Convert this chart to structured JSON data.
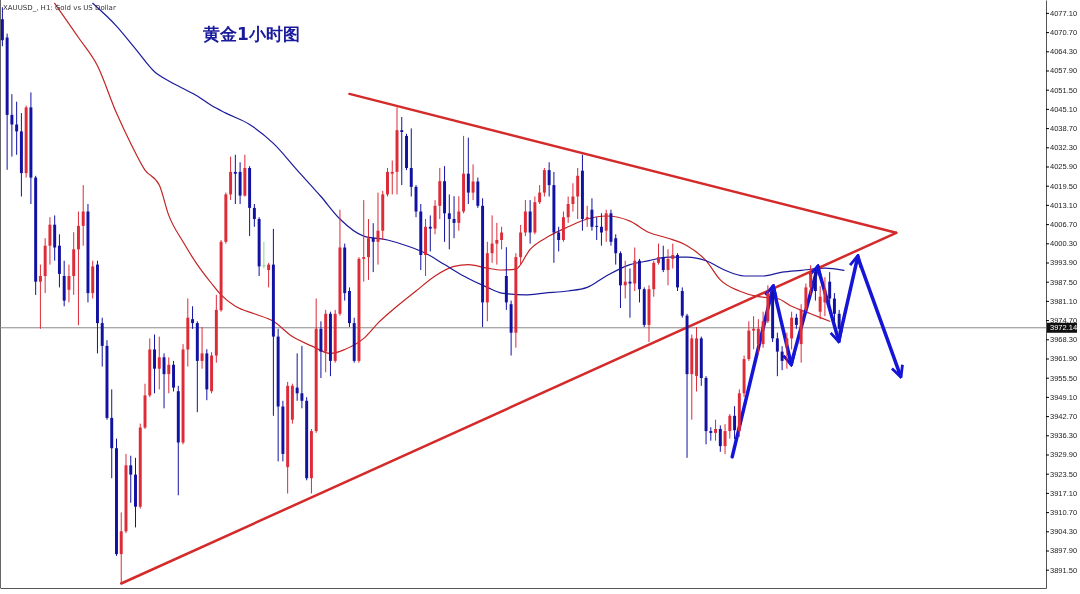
{
  "chart_data": {
    "type": "candlestick",
    "title": "黄金1小时图",
    "annotations": [
      "XAUUSD_, H1:  Gold vs US Dollar"
    ],
    "categories": [
      null,
      null,
      null,
      null,
      null,
      null,
      null,
      null,
      null,
      null,
      null,
      null,
      null,
      null,
      null,
      null,
      null,
      null,
      null,
      null,
      null,
      null,
      null,
      null,
      null,
      null,
      null,
      null,
      null,
      null,
      null,
      null,
      null,
      null,
      null,
      null,
      null,
      null,
      null,
      null,
      null,
      null,
      null,
      null,
      null,
      null,
      null,
      null,
      null,
      null,
      null,
      null,
      null,
      null,
      null,
      null,
      null,
      null,
      null,
      null,
      null,
      null,
      null,
      null,
      null,
      null,
      null,
      null,
      null,
      null,
      null,
      null,
      null,
      null,
      null,
      null,
      null,
      null,
      null,
      null,
      null,
      null,
      null,
      null,
      null,
      null,
      null,
      null,
      null,
      null,
      null,
      null,
      null,
      null,
      null,
      null,
      null,
      null,
      null,
      null,
      null,
      null,
      null,
      null,
      null,
      null,
      null,
      null,
      null,
      null,
      null,
      null,
      null,
      null,
      null,
      null,
      null,
      null,
      null,
      null,
      null,
      null,
      null,
      null,
      null,
      null,
      null,
      null,
      null,
      null,
      null,
      null,
      null,
      null,
      null,
      null,
      null,
      null,
      null,
      null,
      null,
      null,
      null,
      null,
      null,
      null,
      null,
      null,
      null,
      null,
      null,
      null,
      null,
      null,
      null,
      null,
      null,
      null,
      null,
      null,
      null,
      null,
      null,
      null,
      null,
      null,
      null,
      null,
      null,
      null,
      null,
      null,
      null,
      null,
      null,
      null,
      null,
      null,
      null,
      null,
      null,
      null,
      null,
      null,
      null,
      null,
      null,
      null,
      null,
      null,
      null,
      null,
      null,
      null,
      null,
      null,
      null,
      null,
      null,
      null,
      null,
      null,
      null,
      null,
      null,
      null,
      null,
      null,
      null,
      null,
      null,
      null,
      null,
      null,
      null,
      null,
      null,
      null,
      null,
      null
    ],
    "ohlc": [
      [
        4075,
        4079,
        4066,
        4068
      ],
      [
        4068.9,
        4070.2,
        4024.8,
        4043.1
      ],
      [
        4043.1,
        4050,
        4029.2,
        4039.9
      ],
      [
        4039.9,
        4047.5,
        4029.8,
        4037.6
      ],
      [
        4037.6,
        4043.7,
        4015.9,
        4023.7
      ],
      [
        4023.7,
        4046.2,
        4022.2,
        4045.6
      ],
      [
        4045.6,
        4050.6,
        4013.4,
        4022.2
      ],
      [
        4022.2,
        4022.8,
        3983.1,
        3987.5
      ],
      [
        3987.5,
        3993.2,
        3971.8,
        3989.4
      ],
      [
        3989.4,
        4002,
        3983.7,
        3999.5
      ],
      [
        3999.5,
        4009,
        3993.2,
        4006.5
      ],
      [
        4006.5,
        4009.6,
        3994.5,
        3998.9
      ],
      [
        3999.5,
        4003.3,
        3985.6,
        3990.1
      ],
      [
        3989.4,
        3994.5,
        3979.3,
        3981.2
      ],
      [
        3984.8,
        3993.2,
        3980.6,
        3989.4
      ],
      [
        3989.4,
        4004,
        3983.1,
        3998.3
      ],
      [
        3998.3,
        4010.9,
        3973,
        4006.1
      ],
      [
        4006.1,
        4019.7,
        3999.5,
        4010.9
      ],
      [
        4010.9,
        4013.4,
        3980.6,
        3983.7
      ],
      [
        3983.7,
        3994.5,
        3981.9,
        3992.6
      ],
      [
        3993.2,
        3994.5,
        3963.6,
        3973.7
      ],
      [
        3973.7,
        3975.5,
        3959.2,
        3966.1
      ],
      [
        3966.1,
        3968,
        3941.5,
        3942.1
      ],
      [
        3942.1,
        3951.6,
        3922,
        3932
      ],
      [
        3932,
        3935.2,
        3896.1,
        3896.7
      ],
      [
        3896.7,
        3910.6,
        3887,
        3904.3
      ],
      [
        3904.3,
        3930.1,
        3903.7,
        3926.3
      ],
      [
        3926.3,
        3929.5,
        3913.8,
        3923.2
      ],
      [
        3923.2,
        3928.8,
        3905.6,
        3912.5
      ],
      [
        3912.5,
        3940.2,
        3911.9,
        3938.9
      ],
      [
        3938.9,
        3953.5,
        3938.4,
        3949.6
      ],
      [
        3949.6,
        3968.6,
        3949,
        3964.9
      ],
      [
        3964.9,
        3969.9,
        3950.3,
        3958.5
      ],
      [
        3958.5,
        3969.2,
        3951.6,
        3962.3
      ],
      [
        3962.3,
        3963.6,
        3945.3,
        3956.7
      ],
      [
        3956.7,
        3962.3,
        3950.3,
        3959.8
      ],
      [
        3959.8,
        3961.1,
        3950.9,
        3952.2
      ],
      [
        3951,
        3952.8,
        3916.3,
        3933.9
      ],
      [
        3933.9,
        3966.7,
        3933.3,
        3964.9
      ],
      [
        3964.9,
        3981.9,
        3959.2,
        3975.5
      ],
      [
        3975,
        3979.3,
        3971.8,
        3973.7
      ],
      [
        3973.7,
        3974.3,
        3944,
        3961.1
      ],
      [
        3961.1,
        3972.4,
        3958.5,
        3963.6
      ],
      [
        3963.6,
        3965,
        3948,
        3951.6
      ],
      [
        3951,
        3964,
        3950.3,
        3962.9
      ],
      [
        3962.9,
        3983.1,
        3960.5,
        3978.1
      ],
      [
        3978,
        4001.4,
        3977.5,
        4000.8
      ],
      [
        4000.8,
        4017.2,
        4000.2,
        4016.6
      ],
      [
        4016.6,
        4029.2,
        4014.7,
        4024.1
      ],
      [
        4024.1,
        4029.8,
        4013.4,
        4023.5
      ],
      [
        4024.1,
        4027.3,
        4013.4,
        4016.2
      ],
      [
        4016.2,
        4029.8,
        4015.9,
        4025.4
      ],
      [
        4025.4,
        4026,
        4002.7,
        4012.1
      ],
      [
        4012.1,
        4013.4,
        4005.8,
        4008.4
      ],
      [
        4008.4,
        4009,
        3989.4,
        3992.6
      ],
      [
        3992.6,
        4000.8,
        3992,
        3993
      ],
      [
        3991.4,
        3993.8,
        3985.6,
        3993.2
      ],
      [
        3993.2,
        4005.1,
        3942.8,
        3969.2
      ],
      [
        3969.2,
        3971.8,
        3927.6,
        3945.9
      ],
      [
        3945.9,
        3947.8,
        3927.6,
        3930.1
      ],
      [
        3925.7,
        3954.1,
        3916.9,
        3952.8
      ],
      [
        3941.5,
        3953.5,
        3940.2,
        3952.8
      ],
      [
        3952.2,
        3963.6,
        3947.8,
        3950.3
      ],
      [
        3950.3,
        3966.1,
        3945.3,
        3947.8
      ],
      [
        3947.8,
        3949,
        3921.3,
        3922
      ],
      [
        3922,
        3938.4,
        3916.9,
        3937.7
      ],
      [
        3937.7,
        3981.9,
        3937.1,
        3971.8
      ],
      [
        3971.8,
        3974.3,
        3955.4,
        3964.2
      ],
      [
        3964.2,
        3978.1,
        3957.3,
        3976.8
      ],
      [
        3976.8,
        3977.5,
        3956,
        3961.1
      ],
      [
        3961.1,
        3978.1,
        3960.5,
        3976.8
      ],
      [
        3976.8,
        4011.5,
        3976.2,
        3998.9
      ],
      [
        3998.9,
        4000.2,
        3981.2,
        3983.7
      ],
      [
        3984.4,
        3985.6,
        3972.4,
        3973.7
      ],
      [
        3973.7,
        3975.5,
        3960.5,
        3961.1
      ],
      [
        3961.1,
        3995.7,
        3960.5,
        3995.1
      ],
      [
        3995.1,
        4014.7,
        3987.5,
        3995.7
      ],
      [
        3995.7,
        4008.4,
        3988.1,
        4002
      ],
      [
        4002,
        4007,
        3990.7,
        4000.8
      ],
      [
        4000.8,
        4017.2,
        3993.2,
        4004.5
      ],
      [
        4004.5,
        4017.8,
        4001.4,
        4016.6
      ],
      [
        4016.6,
        4025.4,
        4015.9,
        4024.1
      ],
      [
        4023.5,
        4027.9,
        4016.6,
        4024.1
      ],
      [
        4024.1,
        4045.6,
        4016.6,
        4038
      ],
      [
        4038,
        4042.4,
        4019.7,
        4037.4
      ],
      [
        4036.1,
        4036.8,
        4024.7,
        4025.4
      ],
      [
        4025.4,
        4038.6,
        4015.9,
        4019.1
      ],
      [
        4019.1,
        4019.7,
        4009,
        4010.9
      ],
      [
        4010.9,
        4013.4,
        3991.4,
        3996.4
      ],
      [
        3996.4,
        4008.4,
        3989.4,
        4005.8
      ],
      [
        4005.8,
        4009.6,
        3997.6,
        4005.2
      ],
      [
        4005.2,
        4014.7,
        4003.3,
        4012.8
      ],
      [
        4012.8,
        4025.4,
        4008.4,
        4021
      ],
      [
        4021,
        4026,
        4000.8,
        4010.3
      ],
      [
        4010.3,
        4016.6,
        3998.3,
        4008.4
      ],
      [
        4008.4,
        4016,
        4002,
        4007.1
      ],
      [
        4007.1,
        4016,
        4004.5,
        4010.9
      ],
      [
        4010.9,
        4036.1,
        4010.3,
        4023.5
      ],
      [
        4023.5,
        4035.5,
        4013.4,
        4017.2
      ],
      [
        4017.2,
        4026.6,
        4014.7,
        4020.9
      ],
      [
        4020.9,
        4022.2,
        4012.1,
        4012.8
      ],
      [
        4012.8,
        4015.3,
        3972.4,
        3980.6
      ],
      [
        3980.6,
        4000.8,
        3974.3,
        3997
      ],
      [
        3997,
        4009.6,
        3993.8,
        4000.2
      ],
      [
        4000.2,
        4007.1,
        3993.2,
        4001.4
      ],
      [
        4001.4,
        4005.8,
        3998.3,
        4003.9
      ],
      [
        3989.4,
        3999,
        3978.1,
        3980.6
      ],
      [
        3980,
        3981.2,
        3962.9,
        3970.5
      ],
      [
        3970.5,
        3997,
        3965.5,
        3995.7
      ],
      [
        3995.7,
        4006.4,
        3993.2,
        4003.9
      ],
      [
        4003.9,
        4014.7,
        4002.7,
        4010.9
      ],
      [
        4010.9,
        4014.7,
        4000.2,
        4003.9
      ],
      [
        4003.9,
        4015.9,
        4003.3,
        4014
      ],
      [
        4014,
        4019.7,
        4013.4,
        4017.2
      ],
      [
        4017.2,
        4025.4,
        4015.9,
        4024.7
      ],
      [
        4024.7,
        4027.3,
        4015.9,
        4019.7
      ],
      [
        4019.7,
        4024.1,
        3993.8,
        4003.9
      ],
      [
        4003.9,
        4005.8,
        3997.6,
        4001.4
      ],
      [
        4001.4,
        4010.9,
        4000.8,
        4009
      ],
      [
        4009,
        4015.9,
        4007.1,
        4013.4
      ],
      [
        4013.4,
        4020.3,
        4010.9,
        4015.9
      ],
      [
        4015.9,
        4025.4,
        4008.4,
        4022.8
      ],
      [
        4024.5,
        4029.8,
        4004.5,
        4008.4
      ],
      [
        4008.4,
        4012.8,
        4005.8,
        4009
      ],
      [
        4011.5,
        4015.3,
        4004.5,
        4005.8
      ],
      [
        4006.1,
        4009,
        4001.4,
        4005.8
      ],
      [
        4005.8,
        4010.3,
        3999.5,
        4003.9
      ],
      [
        4004.5,
        4011.5,
        4000.8,
        4010.3
      ],
      [
        4010.3,
        4011.5,
        3999.5,
        4000.8
      ],
      [
        4002,
        4003.3,
        3993.2,
        3997
      ],
      [
        3997,
        3997.6,
        3978.7,
        3986.3
      ],
      [
        3986.3,
        3994.5,
        3981.9,
        3987.5
      ],
      [
        3987.5,
        3991.9,
        3975.5,
        3986.9
      ],
      [
        3986.9,
        3998.9,
        3984.4,
        3994.5
      ],
      [
        3994.5,
        3995.1,
        3980.6,
        3985
      ],
      [
        3985,
        3985.6,
        3972.4,
        3973.1
      ],
      [
        3973.1,
        3986.3,
        3967.4,
        3985
      ],
      [
        3985,
        3994.5,
        3982.5,
        3993.8
      ],
      [
        3993.8,
        4000.2,
        3993.2,
        3995.7
      ],
      [
        3995.7,
        3999.5,
        3990.7,
        3991.4
      ],
      [
        3991.4,
        3998.3,
        3986.3,
        3995.1
      ],
      [
        3995.1,
        4000.2,
        3991.9,
        3996.4
      ],
      [
        3996.4,
        3997,
        3984.4,
        3985.6
      ],
      [
        3984.4,
        3985.6,
        3975.5,
        3976.2
      ],
      [
        3976.2,
        3976.8,
        3928.8,
        3956.7
      ],
      [
        3956.7,
        3969.9,
        3941.5,
        3968.6
      ],
      [
        3956.1,
        3972.4,
        3950.9,
        3968.6
      ],
      [
        3968.6,
        3969.2,
        3952.8,
        3955.4
      ],
      [
        3955.4,
        3956,
        3933.3,
        3937.7
      ],
      [
        3937.7,
        3939,
        3934.5,
        3937.1
      ],
      [
        3937.1,
        3941.5,
        3934.5,
        3938.4
      ],
      [
        3938.4,
        3939.6,
        3930.8,
        3932.7
      ],
      [
        3932.7,
        3940,
        3930,
        3937.7
      ],
      [
        3937.7,
        3943.4,
        3935.2,
        3942.8
      ],
      [
        3942.8,
        3946,
        3935,
        3938
      ],
      [
        3937.7,
        3951.6,
        3935.8,
        3950.3
      ],
      [
        3950.3,
        3962.9,
        3949,
        3961.7
      ],
      [
        3961.7,
        3974.3,
        3961.1,
        3971.2
      ],
      [
        3971.2,
        3976,
        3965,
        3971.8
      ],
      [
        3966.7,
        3975,
        3963.6,
        3971.8
      ],
      [
        3966.7,
        3977.5,
        3965.5,
        3974.3
      ],
      [
        3974.3,
        3986.3,
        3973.7,
        3983.7
      ],
      [
        3983.7,
        3984.4,
        3967.4,
        3968.6
      ],
      [
        3968.6,
        3970.5,
        3956,
        3964.2
      ],
      [
        3964.2,
        3966,
        3958,
        3961.1
      ],
      [
        3966.1,
        3970.5,
        3958.5,
        3968.6
      ],
      [
        3968.6,
        3977.5,
        3964.9,
        3975.5
      ],
      [
        3975.5,
        3976.8,
        3971.8,
        3973.1
      ],
      [
        3966.7,
        3980,
        3960.5,
        3978.1
      ],
      [
        3978.1,
        3986.9,
        3977.5,
        3985.6
      ],
      [
        3985.6,
        3993,
        3983,
        3990.7
      ],
      [
        3990.7,
        3992,
        3981.2,
        3984.4
      ],
      [
        3977.5,
        3986,
        3975,
        3982.5
      ],
      [
        3980.6,
        3989,
        3976,
        3985
      ],
      [
        3987.5,
        3990.7,
        3978.7,
        3981.9
      ],
      [
        3981.9,
        3983.7,
        3973.7,
        3976.8
      ],
      [
        3976.8,
        3978.1,
        3970,
        3971.8
      ],
      null,
      null,
      null,
      null,
      null,
      null,
      null,
      null,
      null,
      null,
      null,
      null,
      null,
      null,
      null,
      null,
      null,
      null,
      null,
      null,
      null,
      null,
      null,
      null,
      null,
      null,
      null,
      null,
      null,
      null,
      null,
      null,
      null,
      null,
      null,
      null,
      null,
      null,
      null,
      null,
      null,
      null,
      null
    ],
    "colors": [
      "#1212a2",
      "#1212a2",
      "#1212a2",
      "#1212a2",
      "#1212a2",
      "#dd2b38",
      "#1212a2",
      "#1212a2",
      "#dd2b38",
      "#dd2b38",
      "#dd2b38",
      "#1212a2",
      "#1212a2",
      "#1212a2",
      "#dd2b38",
      "#dd2b38",
      "#dd2b38",
      "#dd2b38",
      "#1212a2",
      "#dd2b38",
      "#1212a2",
      "#1212a2",
      "#1212a2",
      "#1212a2",
      "#1212a2",
      "#dd2b38",
      "#dd2b38",
      "#1212a2",
      "#1212a2",
      "#dd2b38",
      "#dd2b38",
      "#dd2b38",
      "#1212a2",
      "#dd2b38",
      "#1212a2",
      "#dd2b38",
      "#1212a2",
      "#1212a2",
      "#dd2b38",
      "#dd2b38",
      "#1212a2",
      "#1212a2",
      "#dd2b38",
      "#1212a2",
      "#dd2b38",
      "#dd2b38",
      "#dd2b38",
      "#dd2b38",
      "#dd2b38",
      "#1212a2",
      "#1212a2",
      "#dd2b38",
      "#1212a2",
      "#1212a2",
      "#1212a2",
      "#8fd68f",
      "#dd2b38",
      "#1212a2",
      "#1212a2",
      "#1212a2",
      "#dd2b38",
      "#dd2b38",
      "#1212a2",
      "#1212a2",
      "#1212a2",
      "#dd2b38",
      "#dd2b38",
      "#1212a2",
      "#dd2b38",
      "#1212a2",
      "#dd2b38",
      "#dd2b38",
      "#1212a2",
      "#1212a2",
      "#1212a2",
      "#dd2b38",
      "#dd2b38",
      "#dd2b38",
      "#1212a2",
      "#dd2b38",
      "#dd2b38",
      "#dd2b38",
      "#dd2b38",
      "#dd2b38",
      "#1212a2",
      "#1212a2",
      "#1212a2",
      "#1212a2",
      "#1212a2",
      "#dd2b38",
      "#1212a2",
      "#dd2b38",
      "#dd2b38",
      "#1212a2",
      "#1212a2",
      "#1212a2",
      "#dd2b38",
      "#dd2b38",
      "#1212a2",
      "#dd2b38",
      "#1212a2",
      "#1212a2",
      "#dd2b38",
      "#dd2b38",
      "#dd2b38",
      "#dd2b38",
      "#1212a2",
      "#1212a2",
      "#dd2b38",
      "#dd2b38",
      "#dd2b38",
      "#1212a2",
      "#dd2b38",
      "#dd2b38",
      "#dd2b38",
      "#1212a2",
      "#1212a2",
      "#1212a2",
      "#dd2b38",
      "#dd2b38",
      "#dd2b38",
      "#dd2b38",
      "#1212a2",
      "#dd2b38",
      "#1212a2",
      "#1212a2",
      "#1212a2",
      "#dd2b38",
      "#1212a2",
      "#1212a2",
      "#1212a2",
      "#dd2b38",
      "#1212a2",
      "#dd2b38",
      "#1212a2",
      "#1212a2",
      "#dd2b38",
      "#dd2b38",
      "#dd2b38",
      "#1212a2",
      "#dd2b38",
      "#dd2b38",
      "#1212a2",
      "#1212a2",
      "#1212a2",
      "#dd2b38",
      "#dd2b38",
      "#1212a2",
      "#1212a2",
      "#1212a2",
      "#dd2b38",
      "#1212a2",
      "#dd2b38",
      "#dd2b38",
      "#1212a2",
      "#dd2b38",
      "#dd2b38",
      "#dd2b38",
      "#dd2b38",
      "#dd2b38",
      "#dd2b38",
      "#dd2b38",
      "#1212a2",
      "#1212a2",
      "#1212a2",
      "#dd2b38",
      "#dd2b38",
      "#1212a2",
      "#dd2b38",
      "#dd2b38",
      "#dd2b38",
      "#1212a2",
      "#dd2b38",
      "#dd2b38",
      "#1212a2",
      "#1212a2",
      "#1212a2",
      null,
      null,
      null,
      null,
      null,
      null,
      null,
      null,
      null,
      null,
      null,
      null,
      null,
      null,
      null,
      null,
      null,
      null,
      null,
      null,
      null,
      null,
      null,
      null,
      null,
      null,
      null,
      null,
      null,
      null,
      null,
      null,
      null,
      null,
      null,
      null,
      null,
      null,
      null,
      null,
      null,
      null,
      null
    ],
    "series": [
      {
        "type": "line",
        "color": "#c42424",
        "values": [
          null,
          null,
          null,
          null,
          null,
          null,
          null,
          null,
          null,
          null,
          null,
          4080.3,
          null,
          null,
          null,
          null,
          4068.9,
          null,
          null,
          null,
          4059.5,
          null,
          null,
          null,
          4043.7,
          null,
          null,
          4033.6,
          null,
          null,
          4024.7,
          null,
          null,
          4019.7,
          null,
          4009.6,
          null,
          null,
          4000.8,
          null,
          null,
          3993.2,
          null,
          null,
          3986.9,
          null,
          3983.1,
          null,
          null,
          3979.3,
          null,
          null,
          null,
          3976.8,
          null,
          null,
          null,
          3974.3,
          null,
          null,
          null,
          3969.2,
          null,
          null,
          null,
          3966.1,
          null,
          null,
          null,
          3963.6,
          null,
          null,
          3964.9,
          null,
          null,
          null,
          3968.6,
          null,
          null,
          3973.7,
          null,
          null,
          null,
          3979.3,
          null,
          null,
          null,
          3984.4,
          null,
          null,
          null,
          3989.4,
          null,
          null,
          null,
          3992.6,
          null,
          null,
          3993.2,
          null,
          null,
          null,
          3992,
          null,
          null,
          3991.4,
          null,
          null,
          3991.7,
          null,
          null,
          3998.3,
          null,
          null,
          null,
          4002.7,
          null,
          null,
          null,
          4005.8,
          null,
          null,
          null,
          4008.4,
          null,
          null,
          null,
          4009.4,
          null,
          null,
          null,
          null,
          4007.7,
          null,
          null,
          null,
          4003.9,
          null,
          null,
          null,
          4002,
          null,
          null,
          null,
          3999.5,
          null,
          null,
          null,
          3994.5,
          null,
          null,
          3988.1,
          null,
          null,
          null,
          3984.4,
          null,
          null,
          null,
          3982.5,
          null,
          null,
          null,
          3981.9,
          null,
          null,
          3979.3,
          null,
          null,
          null,
          3976.8,
          null,
          null,
          null,
          3974.3,
          null,
          null,
          null,
          null,
          null,
          null,
          null,
          null,
          null,
          null,
          null,
          null,
          null,
          null,
          null,
          null,
          null,
          null,
          null,
          null,
          null,
          null,
          null,
          null,
          null,
          null,
          null,
          null,
          null,
          null,
          null,
          null,
          null,
          null,
          null,
          null,
          null,
          null,
          null,
          null,
          null,
          null,
          null,
          null,
          null
        ]
      },
      {
        "type": "line",
        "color": "#1a1a9c",
        "values": [
          null,
          null,
          null,
          null,
          null,
          null,
          null,
          null,
          null,
          null,
          null,
          null,
          null,
          null,
          null,
          null,
          null,
          null,
          null,
          4080.3,
          null,
          null,
          null,
          null,
          4072.7,
          null,
          null,
          null,
          4065.1,
          null,
          null,
          null,
          4057.5,
          null,
          null,
          4054.4,
          null,
          null,
          4051.9,
          null,
          null,
          4049.4,
          null,
          null,
          4046.2,
          null,
          null,
          4043.7,
          null,
          null,
          null,
          null,
          4039.9,
          null,
          null,
          null,
          null,
          4033.6,
          null,
          null,
          null,
          null,
          4024.7,
          null,
          null,
          null,
          null,
          4015.9,
          null,
          null,
          null,
          4008.4,
          null,
          null,
          null,
          null,
          4002.7,
          null,
          null,
          null,
          null,
          4001.4,
          null,
          null,
          null,
          3999.5,
          null,
          null,
          null,
          3997,
          null,
          null,
          null,
          3993.2,
          null,
          null,
          null,
          3989.4,
          null,
          null,
          null,
          null,
          3985.6,
          null,
          null,
          3983.7,
          null,
          null,
          null,
          null,
          3983.1,
          null,
          null,
          null,
          3983.7,
          null,
          null,
          null,
          null,
          3984.4,
          null,
          null,
          null,
          3985.6,
          null,
          null,
          null,
          3989.4,
          null,
          null,
          null,
          null,
          3993.2,
          null,
          null,
          null,
          3994.5,
          null,
          null,
          null,
          3995.7,
          null,
          null,
          null,
          3995.7,
          null,
          null,
          null,
          3994.5,
          null,
          null,
          null,
          3991.3,
          null,
          null,
          null,
          3989.4,
          null,
          null,
          null,
          3989.4,
          null,
          null,
          null,
          3990.7,
          null,
          null,
          null,
          3991.3,
          null,
          null,
          null,
          null,
          3992,
          null,
          null,
          null,
          3991.3,
          null,
          null,
          null,
          null,
          null,
          null,
          null,
          null,
          null,
          null,
          null,
          null,
          null,
          null,
          null,
          null,
          null,
          null,
          null,
          null,
          null,
          null,
          null,
          null,
          null,
          null,
          null,
          null,
          null,
          null,
          null,
          null,
          null,
          null,
          null,
          null,
          null,
          null,
          null,
          null,
          null,
          null
        ]
      },
      {
        "type": "line",
        "color": "#d42a2a",
        "values": [
          null,
          null,
          null,
          null,
          null,
          null,
          null,
          null,
          null,
          null,
          null,
          null,
          null,
          null,
          null,
          null,
          null,
          null,
          null,
          null,
          null,
          null,
          null,
          null,
          null,
          null,
          null,
          null,
          null,
          null,
          null,
          null,
          null,
          null,
          null,
          null,
          null,
          null,
          null,
          null,
          null,
          null,
          null,
          null,
          null,
          null,
          null,
          null,
          null,
          null,
          null,
          null,
          null,
          null,
          null,
          null,
          null,
          null,
          null,
          null,
          null,
          null,
          null,
          null,
          null,
          null,
          null,
          null,
          null,
          null,
          null,
          null,
          null,
          4050.1,
          null,
          null,
          null,
          null,
          null,
          null,
          null,
          null,
          null,
          null,
          null,
          null,
          null,
          null,
          null,
          null,
          null,
          null,
          null,
          null,
          null,
          null,
          null,
          null,
          null,
          null,
          null,
          null,
          null,
          null,
          null,
          null,
          null,
          null,
          null,
          null,
          null,
          null,
          null,
          null,
          null,
          null,
          null,
          null,
          null,
          null,
          null,
          null,
          null,
          null,
          null,
          null,
          null,
          null,
          null,
          null,
          null,
          null,
          null,
          null,
          null,
          null,
          null,
          null,
          null,
          null,
          null,
          null,
          null,
          null,
          null,
          null,
          null,
          null,
          null,
          null,
          null,
          null,
          null,
          null,
          null,
          null,
          null,
          null,
          null,
          null,
          null,
          null,
          null,
          null,
          null,
          null,
          null,
          null,
          null,
          null,
          null,
          null,
          null,
          null,
          null,
          null,
          null,
          null,
          null,
          null,
          null,
          null,
          null,
          null,
          null,
          null,
          null,
          null,
          4003.8,
          null,
          null,
          null,
          null,
          null,
          null,
          null,
          null,
          null,
          null,
          null,
          null,
          null,
          null,
          null,
          null,
          null,
          null,
          null,
          null,
          null,
          null,
          null,
          null,
          null,
          null,
          null,
          null,
          null,
          null,
          null
        ]
      },
      {
        "type": "line",
        "color": "#d42a2a",
        "values": [
          null,
          null,
          null,
          null,
          null,
          null,
          null,
          null,
          null,
          null,
          null,
          null,
          null,
          null,
          null,
          null,
          null,
          null,
          null,
          null,
          null,
          null,
          null,
          null,
          null,
          3886.9,
          null,
          null,
          null,
          null,
          null,
          null,
          null,
          null,
          null,
          null,
          null,
          null,
          null,
          null,
          null,
          null,
          null,
          null,
          null,
          null,
          null,
          null,
          null,
          null,
          null,
          null,
          null,
          null,
          null,
          null,
          null,
          null,
          null,
          null,
          null,
          null,
          null,
          null,
          null,
          null,
          null,
          null,
          null,
          null,
          null,
          null,
          null,
          null,
          null,
          null,
          null,
          null,
          null,
          null,
          null,
          null,
          null,
          null,
          null,
          null,
          null,
          null,
          null,
          null,
          null,
          null,
          null,
          null,
          null,
          null,
          null,
          null,
          null,
          null,
          null,
          null,
          null,
          null,
          null,
          null,
          null,
          null,
          null,
          null,
          null,
          null,
          null,
          null,
          null,
          null,
          null,
          null,
          null,
          null,
          null,
          null,
          null,
          null,
          null,
          null,
          null,
          null,
          null,
          null,
          null,
          null,
          null,
          null,
          null,
          null,
          null,
          null,
          null,
          null,
          null,
          null,
          null,
          null,
          null,
          null,
          null,
          null,
          null,
          null,
          null,
          null,
          null,
          null,
          null,
          null,
          null,
          null,
          null,
          null,
          null,
          null,
          null,
          null,
          null,
          null,
          null,
          null,
          null,
          null,
          null,
          null,
          null,
          null,
          null,
          null,
          null,
          null,
          null,
          null,
          null,
          null,
          null,
          null,
          null,
          null,
          null,
          null,
          4003.8,
          null,
          null,
          null,
          null,
          null,
          null,
          null,
          null,
          null,
          null,
          null,
          null,
          null,
          null,
          null,
          null,
          null,
          null,
          null,
          null,
          null,
          null,
          null,
          null,
          null,
          null,
          null,
          null,
          null,
          null,
          null
        ]
      }
    ],
    "ylim": [
      3885.4,
      4081.4
    ],
    "yticks": [
      {
        "value": 4077.1,
        "label": "4077.10"
      },
      {
        "value": 4070.7,
        "label": "4070.70"
      },
      {
        "value": 4064.3,
        "label": "4064.30"
      },
      {
        "value": 4057.9,
        "label": "4057.90"
      },
      {
        "value": 4051.5,
        "label": "4051.50"
      },
      {
        "value": 4045.1,
        "label": "4045.10"
      },
      {
        "value": 4038.7,
        "label": "4038.70"
      },
      {
        "value": 4032.3,
        "label": "4032.30"
      },
      {
        "value": 4025.9,
        "label": "4025.90"
      },
      {
        "value": 4019.5,
        "label": "4019.50"
      },
      {
        "value": 4013.1,
        "label": "4013.10"
      },
      {
        "value": 4006.7,
        "label": "4006.70"
      },
      {
        "value": 4000.3,
        "label": "4000.30"
      },
      {
        "value": 3993.9,
        "label": "3993.90"
      },
      {
        "value": 3987.5,
        "label": "3987.50"
      },
      {
        "value": 3981.1,
        "label": "3981.10"
      },
      {
        "value": 3974.7,
        "label": "3974.70"
      },
      {
        "value": 3968.3,
        "label": "3968.30"
      },
      {
        "value": 3961.9,
        "label": "3961.90"
      },
      {
        "value": 3955.5,
        "label": "3955.50"
      },
      {
        "value": 3949.1,
        "label": "3949.10"
      },
      {
        "value": 3942.7,
        "label": "3942.70"
      },
      {
        "value": 3936.3,
        "label": "3936.30"
      },
      {
        "value": 3929.9,
        "label": "3929.90"
      },
      {
        "value": 3923.5,
        "label": "3923.50"
      },
      {
        "value": 3917.1,
        "label": "3917.10"
      },
      {
        "value": 3910.7,
        "label": "3910.70"
      },
      {
        "value": 3904.3,
        "label": "3904.30"
      },
      {
        "value": 3897.9,
        "label": "3897.90"
      },
      {
        "value": 3891.5,
        "label": "3891.50"
      }
    ],
    "ref_lines": [
      {
        "axis": "y",
        "value": 3972.14,
        "label": "3972.14",
        "color": "#8a8a8a"
      }
    ],
    "tick_labels": "y"
  }
}
